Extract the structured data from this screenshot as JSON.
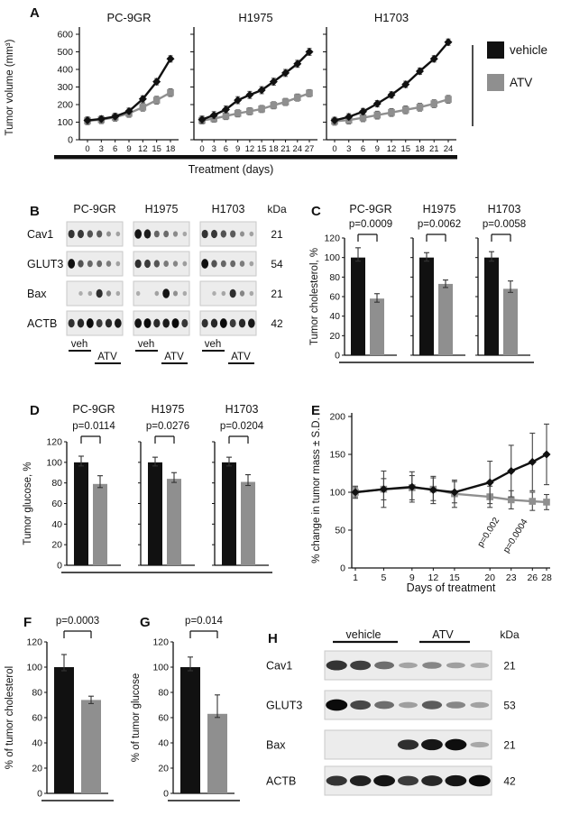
{
  "colors": {
    "vehicle": "#111111",
    "atv": "#8f8f8f"
  },
  "chart_data": [
    {
      "panel": "A",
      "type": "line",
      "ylabel": "Tumor volume (mm³)",
      "xlabel": "Treatment (days)",
      "ylim": [
        0,
        600
      ],
      "yticks": [
        0,
        100,
        200,
        300,
        400,
        500,
        600
      ],
      "legend": [
        {
          "name": "vehicle",
          "color": "#111111"
        },
        {
          "name": "ATV",
          "color": "#8f8f8f"
        }
      ],
      "subplots": [
        {
          "title": "PC-9GR",
          "x": [
            0,
            3,
            6,
            9,
            12,
            15,
            18
          ],
          "series": [
            {
              "name": "vehicle",
              "values": [
                110,
                118,
                132,
                162,
                232,
                330,
                460
              ],
              "err": 18
            },
            {
              "name": "ATV",
              "values": [
                108,
                114,
                128,
                150,
                185,
                225,
                268
              ],
              "err": 22
            }
          ]
        },
        {
          "title": "H1975",
          "x": [
            0,
            3,
            6,
            9,
            12,
            15,
            18,
            21,
            24,
            27
          ],
          "series": [
            {
              "name": "vehicle",
              "values": [
                115,
                140,
                172,
                225,
                255,
                282,
                330,
                380,
                432,
                500
              ],
              "err": 20
            },
            {
              "name": "ATV",
              "values": [
                110,
                120,
                135,
                150,
                162,
                175,
                196,
                215,
                240,
                265
              ],
              "err": 20
            }
          ]
        },
        {
          "title": "H1703",
          "x": [
            0,
            3,
            6,
            9,
            12,
            15,
            18,
            21,
            24
          ],
          "series": [
            {
              "name": "vehicle",
              "values": [
                110,
                130,
                160,
                205,
                255,
                315,
                390,
                460,
                555
              ],
              "err": 18
            },
            {
              "name": "ATV",
              "values": [
                105,
                112,
                125,
                140,
                155,
                170,
                185,
                205,
                230
              ],
              "err": 22
            }
          ]
        }
      ]
    },
    {
      "panel": "C",
      "type": "bar",
      "ylabel": "Tumor cholesterol, %",
      "ylim": [
        0,
        120
      ],
      "yticks": [
        0,
        20,
        40,
        60,
        80,
        100,
        120
      ],
      "groups": [
        {
          "title": "PC-9GR",
          "p": "p=0.0009",
          "bars": [
            {
              "name": "vehicle",
              "value": 100,
              "err": 10
            },
            {
              "name": "ATV",
              "value": 58,
              "err": 5
            }
          ]
        },
        {
          "title": "H1975",
          "p": "p=0.0062",
          "bars": [
            {
              "name": "vehicle",
              "value": 100,
              "err": 5
            },
            {
              "name": "ATV",
              "value": 73,
              "err": 4
            }
          ]
        },
        {
          "title": "H1703",
          "p": "p=0.0058",
          "bars": [
            {
              "name": "vehicle",
              "value": 100,
              "err": 6
            },
            {
              "name": "ATV",
              "value": 68,
              "err": 8
            }
          ]
        }
      ]
    },
    {
      "panel": "D",
      "type": "bar",
      "ylabel": "Tumor glucose, %",
      "ylim": [
        0,
        120
      ],
      "yticks": [
        0,
        20,
        40,
        60,
        80,
        100,
        120
      ],
      "groups": [
        {
          "title": "PC-9GR",
          "p": "p=0.0114",
          "bars": [
            {
              "name": "vehicle",
              "value": 100,
              "err": 6
            },
            {
              "name": "ATV",
              "value": 79,
              "err": 8
            }
          ]
        },
        {
          "title": "H1975",
          "p": "p=0.0276",
          "bars": [
            {
              "name": "vehicle",
              "value": 100,
              "err": 5
            },
            {
              "name": "ATV",
              "value": 84,
              "err": 6
            }
          ]
        },
        {
          "title": "H1703",
          "p": "p=0.0204",
          "bars": [
            {
              "name": "vehicle",
              "value": 100,
              "err": 5
            },
            {
              "name": "ATV",
              "value": 81,
              "err": 7
            }
          ]
        }
      ]
    },
    {
      "panel": "E",
      "type": "line",
      "ylabel": "% change in tumor mass ± S.D.",
      "xlabel": "Days of treatment",
      "ylim": [
        0,
        200
      ],
      "yticks": [
        0,
        50,
        100,
        150,
        200
      ],
      "x": [
        1,
        5,
        9,
        12,
        15,
        20,
        23,
        26,
        28
      ],
      "series": [
        {
          "name": "vehicle",
          "values": [
            100,
            104,
            107,
            103,
            100,
            113,
            128,
            140,
            150
          ],
          "err": [
            6,
            24,
            20,
            18,
            14,
            28,
            34,
            38,
            40
          ]
        },
        {
          "name": "ATV",
          "values": [
            100,
            104,
            106,
            104,
            98,
            94,
            90,
            88,
            87
          ],
          "err": [
            8,
            14,
            16,
            15,
            18,
            14,
            12,
            12,
            10
          ]
        }
      ],
      "annotations": [
        "p=0.002",
        "p=0.0004"
      ]
    },
    {
      "panel": "F",
      "type": "bar",
      "ylabel": "% of tumor cholesterol",
      "ylim": [
        0,
        120
      ],
      "yticks": [
        0,
        20,
        40,
        60,
        80,
        100,
        120
      ],
      "groups": [
        {
          "title": "",
          "p": "p=0.0003",
          "bars": [
            {
              "name": "vehicle",
              "value": 100,
              "err": 10
            },
            {
              "name": "ATV",
              "value": 74,
              "err": 3
            }
          ]
        }
      ]
    },
    {
      "panel": "G",
      "type": "bar",
      "ylabel": "% of tumor glucose",
      "ylim": [
        0,
        120
      ],
      "yticks": [
        0,
        20,
        40,
        60,
        80,
        100,
        120
      ],
      "groups": [
        {
          "title": "",
          "p": "p=0.014",
          "bars": [
            {
              "name": "vehicle",
              "value": 100,
              "err": 8
            },
            {
              "name": "ATV",
              "value": 63,
              "err": 15
            }
          ]
        }
      ]
    }
  ],
  "blots": {
    "B": {
      "label": "B",
      "col_titles": [
        "PC-9GR",
        "H1975",
        "H1703"
      ],
      "kda_label": "kDa",
      "group_labels": [
        "veh",
        "ATV"
      ],
      "rows": [
        {
          "name": "Cav1",
          "kda": "21",
          "lanes": [
            0.95,
            0.8,
            0.55,
            0.45,
            0.22,
            0.1
          ]
        },
        {
          "name": "GLUT3",
          "kda": "54",
          "lanes": [
            0.9,
            0.72,
            0.5,
            0.42,
            0.28,
            0.12
          ]
        },
        {
          "name": "Bax",
          "kda": "21",
          "lanes": [
            0.04,
            0.04,
            0.1,
            0.85,
            0.25,
            0.06
          ]
        },
        {
          "name": "ACTB",
          "kda": "42",
          "lanes": [
            0.92,
            0.88,
            0.92,
            0.9,
            0.9,
            0.88
          ]
        }
      ]
    },
    "H": {
      "label": "H",
      "col_titles": [
        "vehicle",
        "ATV"
      ],
      "kda_label": "kDa",
      "rows": [
        {
          "name": "Cav1",
          "kda": "21",
          "lanes": [
            0.95,
            0.75,
            0.4,
            0.08,
            0.3,
            0.12,
            0.04
          ]
        },
        {
          "name": "GLUT3",
          "kda": "53",
          "lanes": [
            0.95,
            0.8,
            0.45,
            0.12,
            0.45,
            0.3,
            0.1
          ]
        },
        {
          "name": "Bax",
          "kda": "21",
          "lanes": [
            0,
            0,
            0.03,
            0.85,
            0.9,
            0.85,
            0.08
          ]
        },
        {
          "name": "ACTB",
          "kda": "42",
          "lanes": [
            0.9,
            0.9,
            0.88,
            0.9,
            0.92,
            0.9,
            0.86
          ]
        }
      ]
    }
  }
}
